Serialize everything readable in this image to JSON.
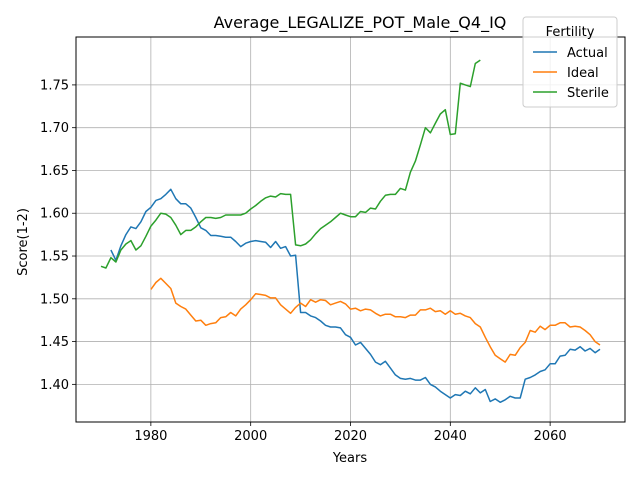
{
  "chart_data": {
    "type": "line",
    "title": "Average_LEGALIZE_POT_Male_Q4_IQ",
    "xlabel": "Years",
    "ylabel": "Score(1-2)",
    "xlim": [
      1965,
      2075
    ],
    "ylim": [
      1.356,
      1.806
    ],
    "xticks": [
      1980,
      2000,
      2020,
      2040,
      2060
    ],
    "yticks": [
      1.4,
      1.45,
      1.5,
      1.55,
      1.6,
      1.65,
      1.7,
      1.75
    ],
    "grid": true,
    "legend": {
      "title": "Fertility",
      "position": "top-right"
    },
    "series": [
      {
        "name": "Actual",
        "color": "#1f77b4",
        "x": [
          1972,
          1973,
          1974,
          1975,
          1976,
          1977,
          1978,
          1979,
          1980,
          1981,
          1982,
          1983,
          1984,
          1985,
          1986,
          1987,
          1988,
          1989,
          1990,
          1991,
          1992,
          1993,
          1994,
          1995,
          1996,
          1997,
          1998,
          1999,
          2000,
          2001,
          2002,
          2003,
          2004,
          2005,
          2006,
          2007,
          2008,
          2009,
          2010,
          2011,
          2012,
          2013,
          2014,
          2015,
          2016,
          2017,
          2018,
          2019,
          2020,
          2021,
          2022,
          2023,
          2024,
          2025,
          2026,
          2027,
          2028,
          2029,
          2030,
          2031,
          2032,
          2033,
          2034,
          2035,
          2036,
          2037,
          2038,
          2039,
          2040,
          2041,
          2042,
          2043,
          2044,
          2045,
          2046,
          2047,
          2048,
          2049,
          2050,
          2051,
          2052,
          2053,
          2054,
          2055,
          2056,
          2057,
          2058,
          2059,
          2060,
          2061,
          2062,
          2063,
          2064,
          2065,
          2066,
          2067,
          2068,
          2069,
          2070
        ],
        "values": [
          1.557,
          1.545,
          1.562,
          1.575,
          1.584,
          1.582,
          1.59,
          1.602,
          1.607,
          1.615,
          1.617,
          1.622,
          1.628,
          1.617,
          1.611,
          1.611,
          1.606,
          1.595,
          1.583,
          1.58,
          1.574,
          1.574,
          1.573,
          1.572,
          1.572,
          1.567,
          1.561,
          1.565,
          1.567,
          1.568,
          1.567,
          1.566,
          1.56,
          1.567,
          1.559,
          1.561,
          1.55,
          1.551,
          1.484,
          1.484,
          1.48,
          1.478,
          1.474,
          1.469,
          1.467,
          1.467,
          1.466,
          1.458,
          1.455,
          1.446,
          1.449,
          1.442,
          1.435,
          1.426,
          1.423,
          1.427,
          1.419,
          1.411,
          1.407,
          1.406,
          1.407,
          1.405,
          1.405,
          1.408,
          1.4,
          1.397,
          1.392,
          1.388,
          1.384,
          1.388,
          1.387,
          1.392,
          1.389,
          1.396,
          1.39,
          1.394,
          1.38,
          1.383,
          1.379,
          1.382,
          1.386,
          1.384,
          1.384,
          1.406,
          1.408,
          1.411,
          1.415,
          1.417,
          1.424,
          1.424,
          1.433,
          1.434,
          1.441,
          1.44,
          1.444,
          1.439,
          1.442,
          1.437,
          1.441
        ]
      },
      {
        "name": "Ideal",
        "color": "#ff7f0e",
        "x": [
          1980,
          1981,
          1982,
          1983,
          1984,
          1985,
          1986,
          1987,
          1988,
          1989,
          1990,
          1991,
          1992,
          1993,
          1994,
          1995,
          1996,
          1997,
          1998,
          1999,
          2000,
          2001,
          2002,
          2003,
          2004,
          2005,
          2006,
          2007,
          2008,
          2009,
          2010,
          2011,
          2012,
          2013,
          2014,
          2015,
          2016,
          2017,
          2018,
          2019,
          2020,
          2021,
          2022,
          2023,
          2024,
          2025,
          2026,
          2027,
          2028,
          2029,
          2030,
          2031,
          2032,
          2033,
          2034,
          2035,
          2036,
          2037,
          2038,
          2039,
          2040,
          2041,
          2042,
          2043,
          2044,
          2045,
          2046,
          2047,
          2048,
          2049,
          2050,
          2051,
          2052,
          2053,
          2054,
          2055,
          2056,
          2057,
          2058,
          2059,
          2060,
          2061,
          2062,
          2063,
          2064,
          2065,
          2066,
          2067,
          2068,
          2069,
          2070
        ],
        "values": [
          1.511,
          1.519,
          1.524,
          1.518,
          1.512,
          1.495,
          1.491,
          1.488,
          1.481,
          1.474,
          1.475,
          1.469,
          1.471,
          1.472,
          1.478,
          1.479,
          1.484,
          1.48,
          1.488,
          1.493,
          1.499,
          1.506,
          1.505,
          1.504,
          1.501,
          1.501,
          1.493,
          1.488,
          1.483,
          1.49,
          1.495,
          1.491,
          1.499,
          1.496,
          1.499,
          1.498,
          1.493,
          1.495,
          1.497,
          1.494,
          1.488,
          1.489,
          1.486,
          1.488,
          1.487,
          1.483,
          1.48,
          1.482,
          1.482,
          1.479,
          1.479,
          1.478,
          1.481,
          1.481,
          1.487,
          1.487,
          1.489,
          1.485,
          1.486,
          1.482,
          1.486,
          1.482,
          1.483,
          1.48,
          1.478,
          1.471,
          1.467,
          1.455,
          1.444,
          1.434,
          1.43,
          1.426,
          1.435,
          1.434,
          1.443,
          1.449,
          1.463,
          1.461,
          1.468,
          1.464,
          1.469,
          1.469,
          1.472,
          1.472,
          1.467,
          1.468,
          1.467,
          1.463,
          1.458,
          1.45,
          1.446
        ]
      },
      {
        "name": "Sterile",
        "color": "#2ca02c",
        "x": [
          1970,
          1971,
          1972,
          1973,
          1974,
          1975,
          1976,
          1977,
          1978,
          1979,
          1980,
          1981,
          1982,
          1983,
          1984,
          1985,
          1986,
          1987,
          1988,
          1989,
          1990,
          1991,
          1992,
          1993,
          1994,
          1995,
          1996,
          1997,
          1998,
          1999,
          2000,
          2001,
          2002,
          2003,
          2004,
          2005,
          2006,
          2007,
          2008,
          2009,
          2010,
          2011,
          2012,
          2013,
          2014,
          2015,
          2016,
          2017,
          2018,
          2019,
          2020,
          2021,
          2022,
          2023,
          2024,
          2025,
          2026,
          2027,
          2028,
          2029,
          2030,
          2031,
          2032,
          2033,
          2034,
          2035,
          2036,
          2037,
          2038,
          2039,
          2040,
          2041,
          2042,
          2043,
          2044,
          2045,
          2046
        ],
        "values": [
          1.538,
          1.536,
          1.548,
          1.543,
          1.557,
          1.564,
          1.568,
          1.557,
          1.562,
          1.573,
          1.585,
          1.592,
          1.6,
          1.599,
          1.595,
          1.586,
          1.575,
          1.58,
          1.58,
          1.584,
          1.59,
          1.595,
          1.595,
          1.594,
          1.595,
          1.598,
          1.598,
          1.598,
          1.598,
          1.6,
          1.605,
          1.609,
          1.614,
          1.618,
          1.62,
          1.619,
          1.623,
          1.622,
          1.622,
          1.563,
          1.562,
          1.564,
          1.569,
          1.576,
          1.582,
          1.586,
          1.59,
          1.595,
          1.6,
          1.598,
          1.596,
          1.596,
          1.602,
          1.601,
          1.606,
          1.605,
          1.614,
          1.621,
          1.622,
          1.622,
          1.629,
          1.627,
          1.648,
          1.661,
          1.68,
          1.7,
          1.694,
          1.705,
          1.716,
          1.721,
          1.692,
          1.693,
          1.752,
          1.75,
          1.748,
          1.775,
          1.779
        ]
      }
    ]
  }
}
